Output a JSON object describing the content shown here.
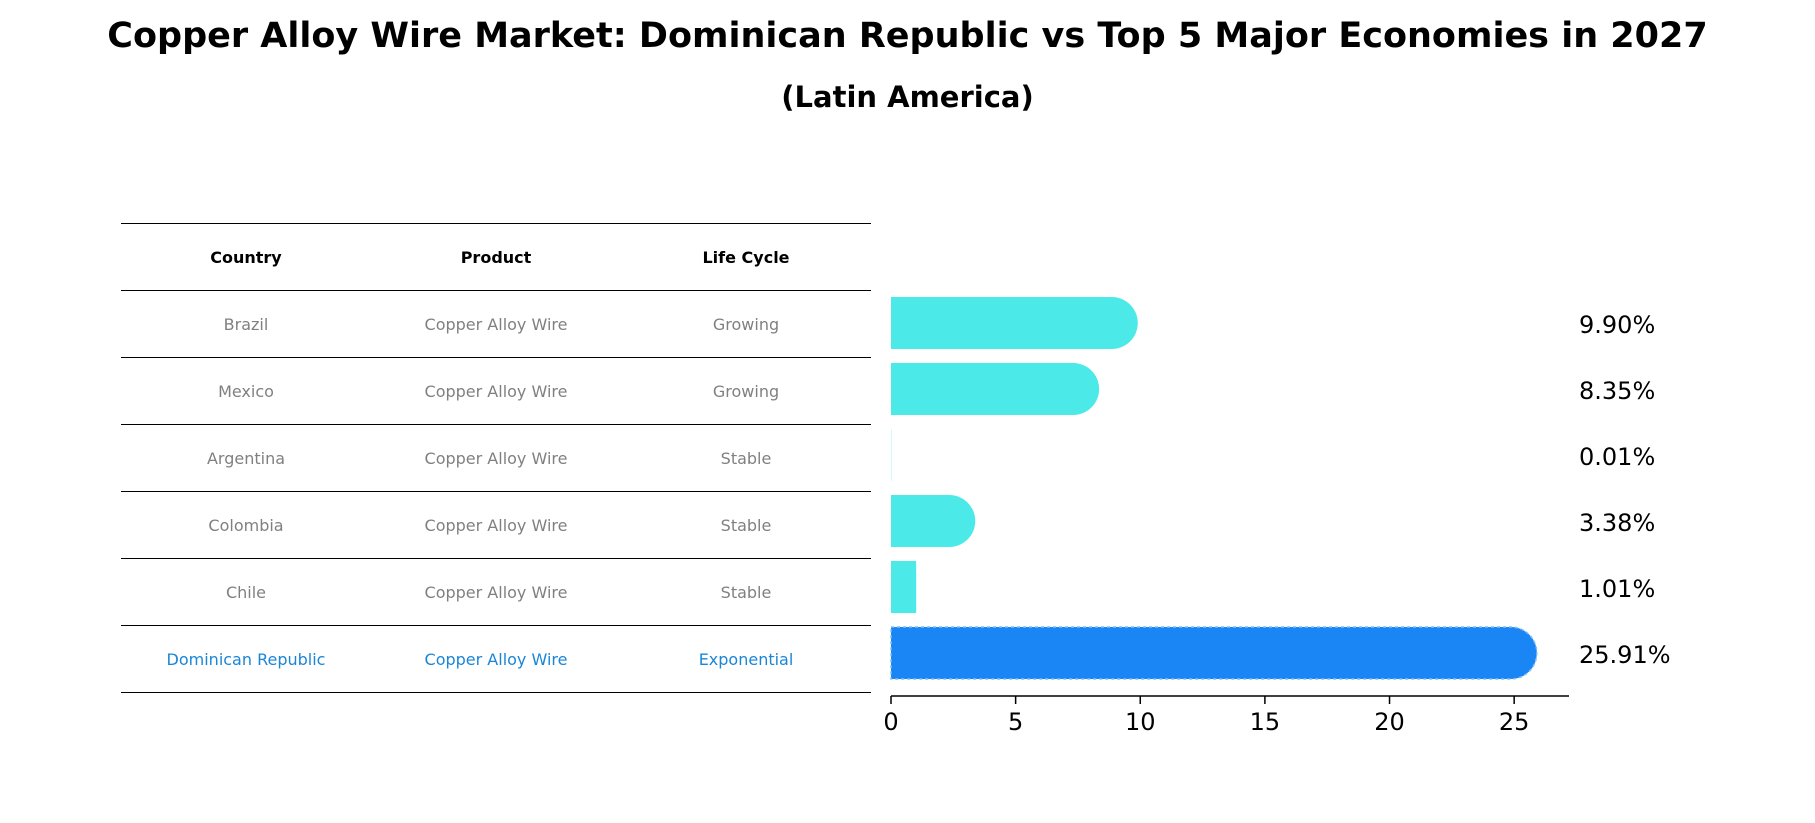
{
  "title": "Copper Alloy Wire Market: Dominican Republic vs Top 5 Major Economies in 2027",
  "subtitle": "(Latin America)",
  "table": {
    "headers": [
      "Country",
      "Product",
      "Life Cycle"
    ],
    "rows": [
      [
        "Brazil",
        "Copper Alloy Wire",
        "Growing"
      ],
      [
        "Mexico",
        "Copper Alloy Wire",
        "Growing"
      ],
      [
        "Argentina",
        "Copper Alloy Wire",
        "Stable"
      ],
      [
        "Colombia",
        "Copper Alloy Wire",
        "Stable"
      ],
      [
        "Chile",
        "Copper Alloy Wire",
        "Stable"
      ],
      [
        "Dominican Republic",
        "Copper Alloy Wire",
        "Exponential"
      ]
    ],
    "highlight_color": "#1a86d8",
    "muted_color": "#808080"
  },
  "chart_data": {
    "type": "bar",
    "orientation": "horizontal",
    "categories": [
      "Brazil",
      "Mexico",
      "Argentina",
      "Colombia",
      "Chile",
      "Dominican Republic"
    ],
    "values": [
      9.9,
      8.35,
      0.01,
      3.38,
      1.01,
      25.91
    ],
    "value_labels": [
      "9.90%",
      "8.35%",
      "0.01%",
      "3.38%",
      "1.01%",
      "25.91%"
    ],
    "xlim": [
      0,
      27.2
    ],
    "xticks": [
      0,
      5,
      10,
      15,
      20,
      25
    ],
    "bar_color": "#4beae9",
    "highlight_color": "#1a86f5",
    "highlight_index": 5,
    "grid": false
  }
}
